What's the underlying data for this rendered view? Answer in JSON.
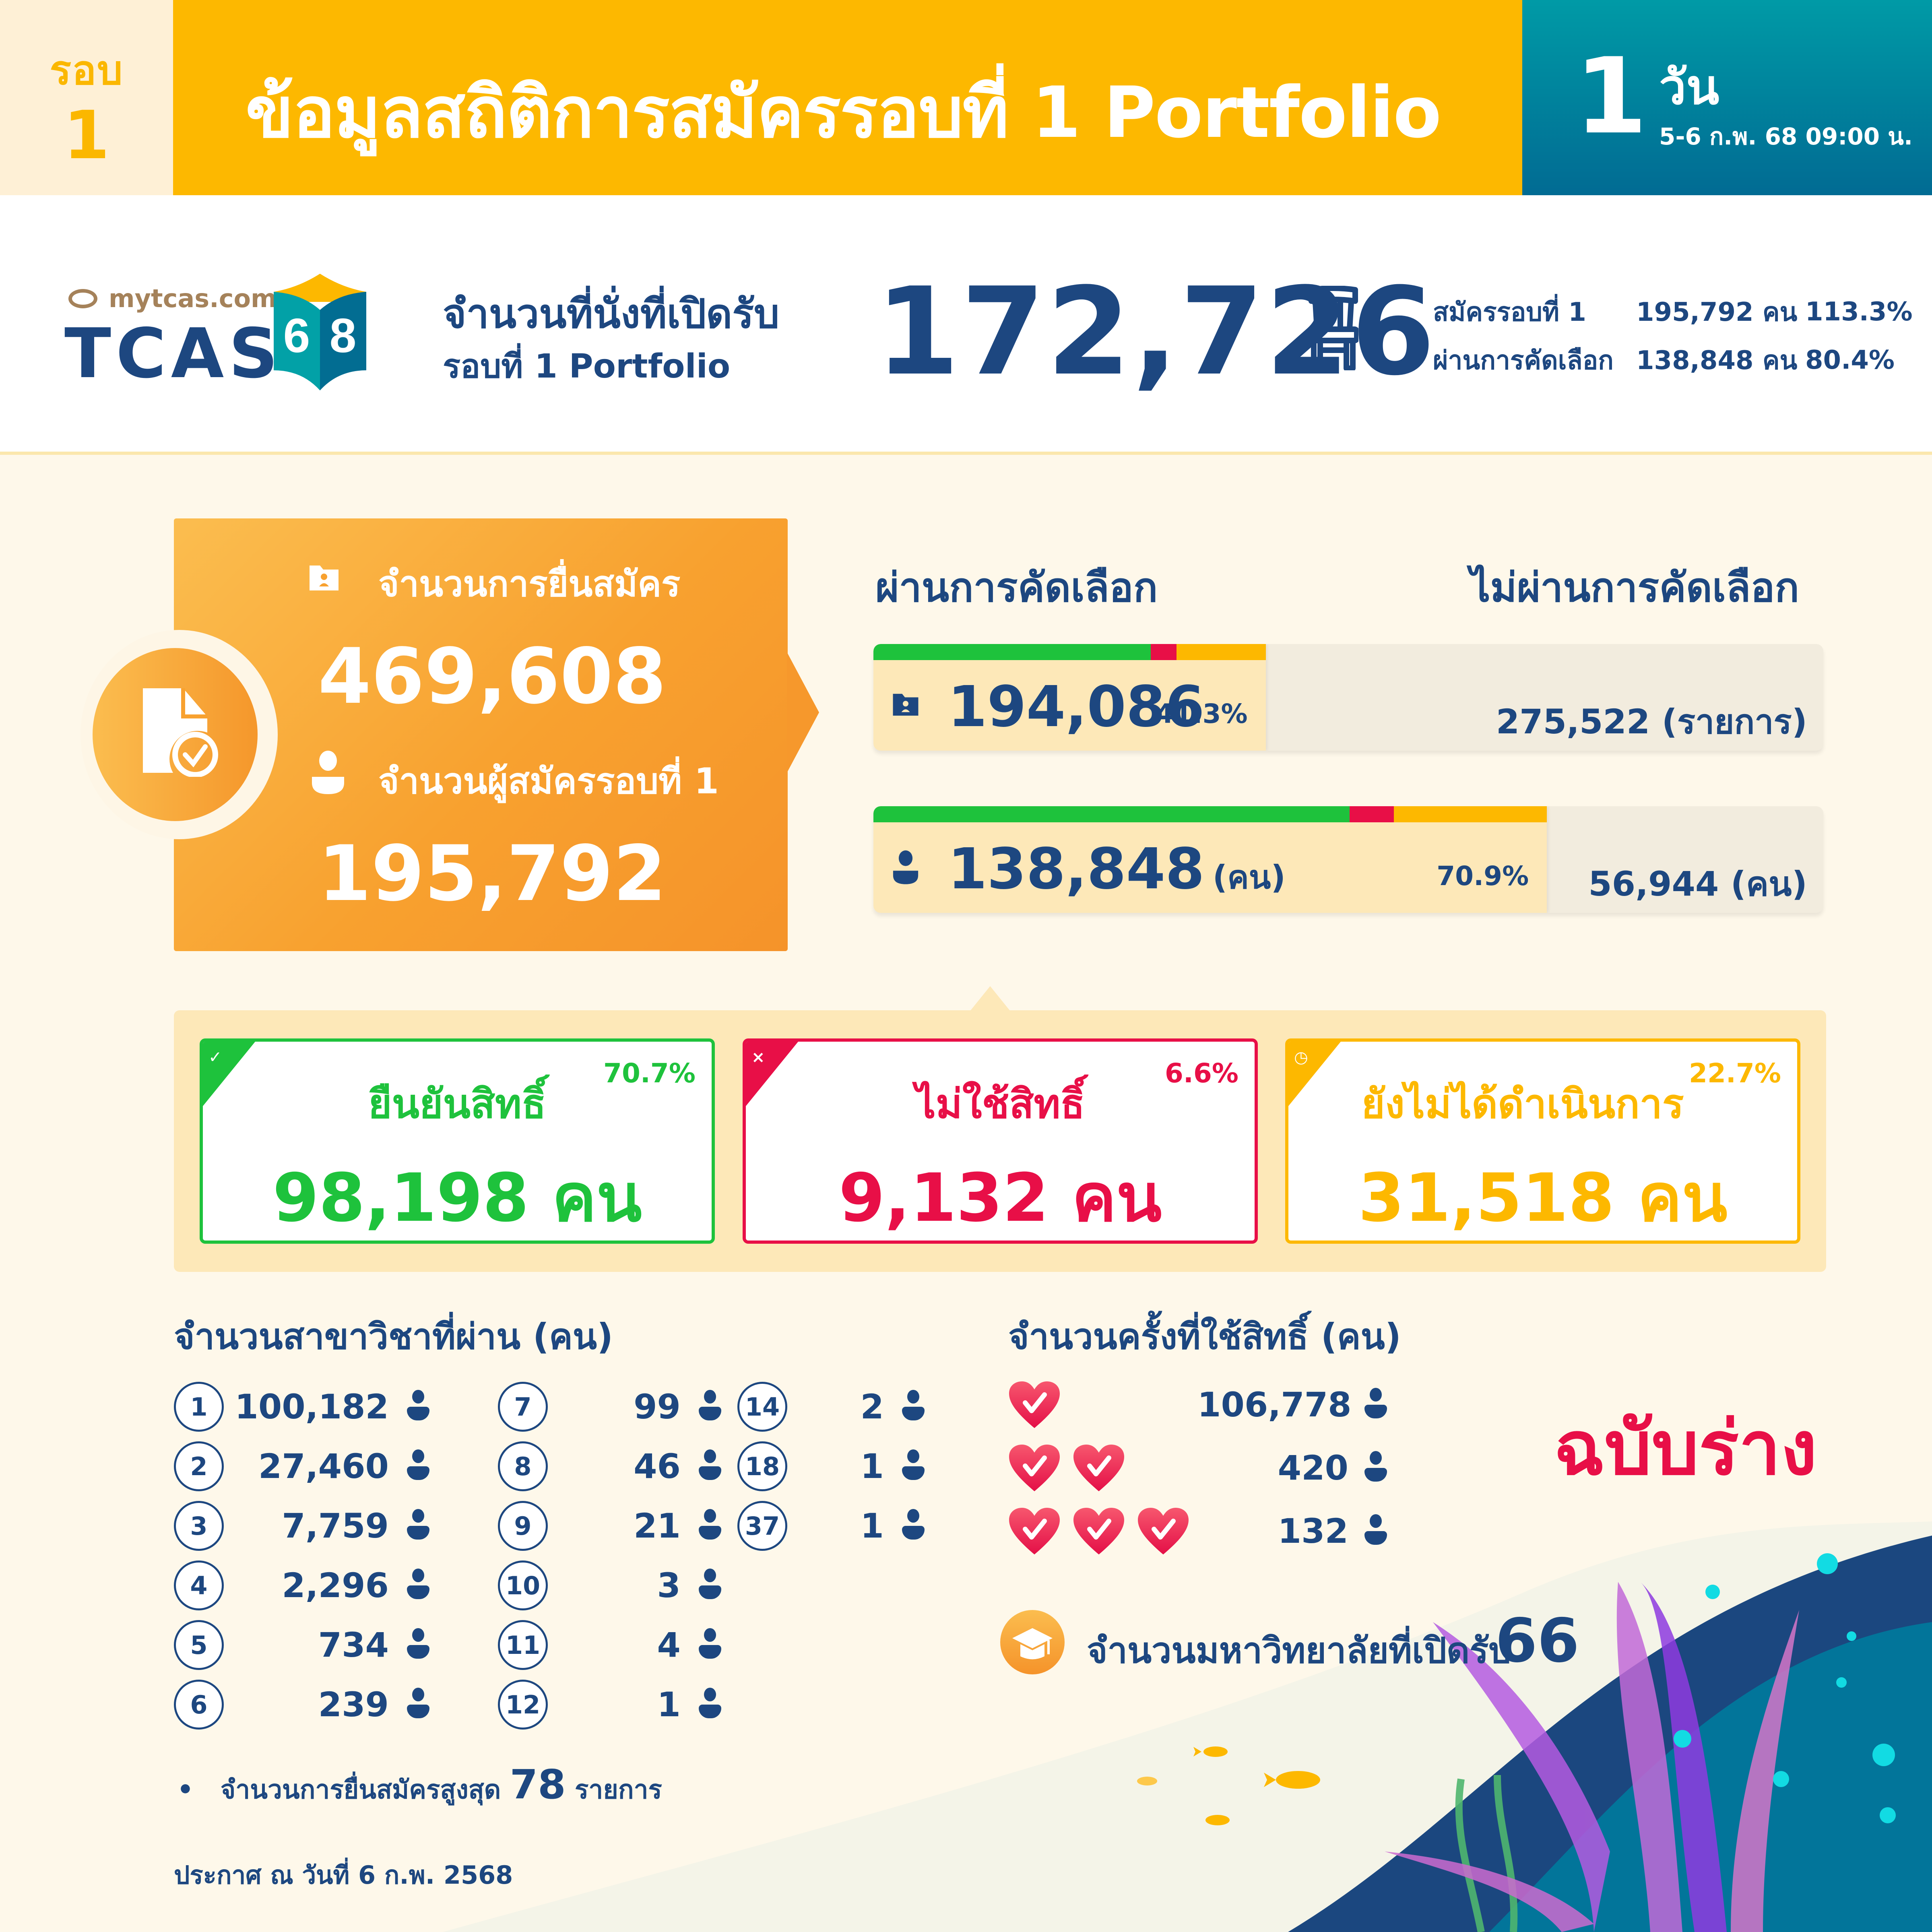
{
  "header": {
    "round_label": "รอบ",
    "round_number": "1",
    "title": "ข้อมูลสถิติการสมัครรอบที่ 1 Portfolio",
    "day_number": "1",
    "day_unit": "วัน",
    "date_range": "5-6 ก.พ. 68 09:00 น."
  },
  "logo": {
    "site": "mytcas.com",
    "brand": "TCAS",
    "year": "68"
  },
  "seats": {
    "label_line1": "จำนวนที่นั่งที่เปิดรับ",
    "label_line2": "รอบที่ 1 Portfolio",
    "value": "172,726",
    "icon": "chair-icon",
    "stats": [
      {
        "label": "สมัครรอบที่ 1",
        "value": "195,792 คน",
        "percent": "113.3%"
      },
      {
        "label": "ผ่านการคัดเลือก",
        "value": "138,848 คน",
        "percent": "80.4%"
      }
    ]
  },
  "applications": {
    "total_label": "จำนวนการยื่นสมัคร",
    "total_value": "469,608",
    "applicants_label": "จำนวนผู้สมัครรอบที่ 1",
    "applicants_value": "195,792"
  },
  "selection": {
    "pass_title": "ผ่านการคัดเลือก",
    "fail_title": "ไม่ผ่านการคัดเลือก",
    "bars": [
      {
        "icon": "folder-user-icon",
        "pass_value": "194,086",
        "pass_unit": "",
        "pass_percent": "41.3%",
        "fail_value": "275,522",
        "fail_unit": "(รายการ)",
        "pass_width_pct": 41.3,
        "segments_pct": [
          70.7,
          6.6,
          22.7
        ]
      },
      {
        "icon": "person-icon",
        "pass_value": "138,848",
        "pass_unit": "(คน)",
        "pass_percent": "70.9%",
        "fail_value": "56,944",
        "fail_unit": "(คน)",
        "pass_width_pct": 70.9,
        "segments_pct": [
          70.7,
          6.6,
          22.7
        ]
      }
    ]
  },
  "status": [
    {
      "title": "ยืนยันสิทธิ์",
      "percent": "70.7%",
      "value": "98,198 คน",
      "color": "#1ec23c",
      "icon": "check-icon",
      "icon_glyph": "✓"
    },
    {
      "title": "ไม่ใช้สิทธิ์",
      "percent": "6.6%",
      "value": "9,132 คน",
      "color": "#e80f47",
      "icon": "close-icon",
      "icon_glyph": "×"
    },
    {
      "title": "ยังไม่ได้ดำเนินการ",
      "percent": "22.7%",
      "value": "31,518 คน",
      "color": "#fdb800",
      "icon": "clock-icon",
      "icon_glyph": "◷"
    }
  ],
  "majors": {
    "title": "จำนวนสาขาวิชาที่ผ่าน (คน)",
    "items": [
      {
        "n": "1",
        "count": "100,182"
      },
      {
        "n": "2",
        "count": "27,460"
      },
      {
        "n": "3",
        "count": "7,759"
      },
      {
        "n": "4",
        "count": "2,296"
      },
      {
        "n": "5",
        "count": "734"
      },
      {
        "n": "6",
        "count": "239"
      },
      {
        "n": "7",
        "count": "99"
      },
      {
        "n": "8",
        "count": "46"
      },
      {
        "n": "9",
        "count": "21"
      },
      {
        "n": "10",
        "count": "3"
      },
      {
        "n": "11",
        "count": "4"
      },
      {
        "n": "12",
        "count": "1"
      },
      {
        "n": "14",
        "count": "2"
      },
      {
        "n": "18",
        "count": "1"
      },
      {
        "n": "37",
        "count": "1"
      }
    ],
    "max_note_prefix": "จำนวนการยื่นสมัครสูงสุด",
    "max_note_value": "78",
    "max_note_suffix": "รายการ"
  },
  "usage": {
    "title": "จำนวนครั้งที่ใช้สิทธิ์ (คน)",
    "rows": [
      {
        "hearts": 1,
        "count": "106,778"
      },
      {
        "hearts": 2,
        "count": "420"
      },
      {
        "hearts": 3,
        "count": "132"
      }
    ]
  },
  "draft_label": "ฉบับร่าง",
  "universities": {
    "label": "จำนวนมหาวิทยาลัยที่เปิดรับ",
    "value": "66"
  },
  "announcement": "ประกาศ ณ วันที่ 6 ก.พ. 2568",
  "colors": {
    "navy": "#1d4780",
    "yellow": "#fdb800",
    "teal": "#009aa6",
    "orange": "#f8a12f",
    "green": "#1ec23c",
    "red": "#e80f47",
    "cream": "#fef8ea"
  }
}
